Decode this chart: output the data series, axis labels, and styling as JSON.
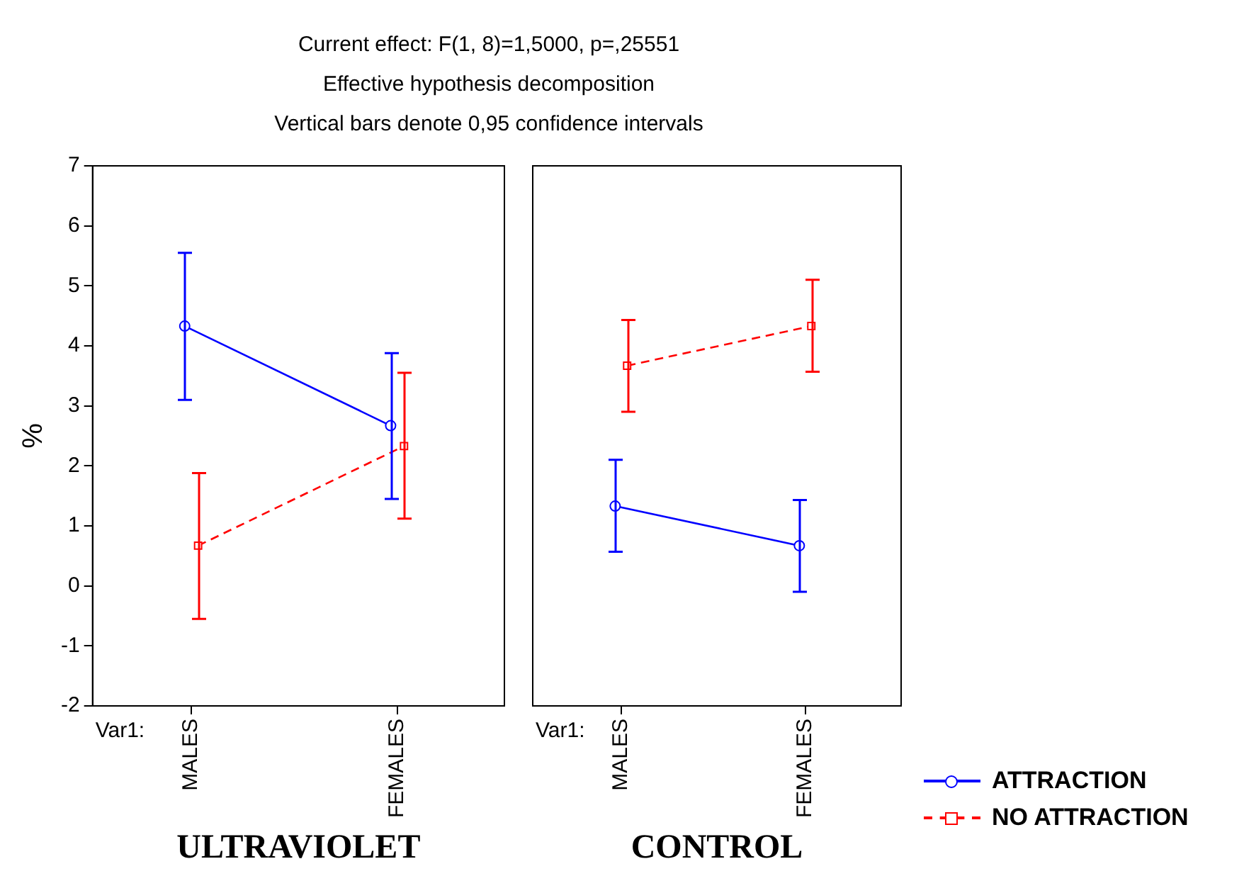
{
  "chart_data": [
    {
      "type": "line",
      "title": "ULTRAVIOLET",
      "xlabel": "Var1:",
      "ylabel": "%",
      "annotations": [
        "Current effect: F(1, 8)=1,5000, p=,25551",
        "Effective hypothesis decomposition",
        "Vertical bars denote 0,95 confidence intervals"
      ],
      "categories": [
        "MALES",
        "FEMALES"
      ],
      "ylim": [
        -2,
        7
      ],
      "yticks": [
        -2,
        -1,
        0,
        1,
        2,
        3,
        4,
        5,
        6,
        7
      ],
      "grid": false,
      "legend": false,
      "series": [
        {
          "color": "#0000ff",
          "marker": "circle",
          "line_style": "solid",
          "values": [
            4.33,
            2.67
          ],
          "errors": [
            [
              3.1,
              5.55
            ],
            [
              1.45,
              3.88
            ]
          ]
        },
        {
          "color": "#ff0000",
          "marker": "square",
          "line_style": "dashed",
          "values": [
            0.67,
            2.33
          ],
          "errors": [
            [
              -0.55,
              1.88
            ],
            [
              1.12,
              3.55
            ]
          ]
        }
      ]
    },
    {
      "type": "line",
      "title": "CONTROL",
      "xlabel": "Var1:",
      "categories": [
        "MALES",
        "FEMALES"
      ],
      "ylim": [
        -2,
        7
      ],
      "grid": false,
      "legend": "bottom right",
      "tick_labels": "x",
      "series": [
        {
          "name": "ATTRACTION",
          "color": "#0000ff",
          "marker": "circle",
          "line_style": "solid",
          "values": [
            1.33,
            0.67
          ],
          "errors": [
            [
              0.57,
              2.1
            ],
            [
              -0.1,
              1.43
            ]
          ]
        },
        {
          "name": "NO ATTRACTION",
          "color": "#ff0000",
          "marker": "square",
          "line_style": "dashed",
          "values": [
            3.67,
            4.33
          ],
          "errors": [
            [
              2.9,
              4.43
            ],
            [
              3.57,
              5.1
            ]
          ]
        }
      ]
    }
  ]
}
